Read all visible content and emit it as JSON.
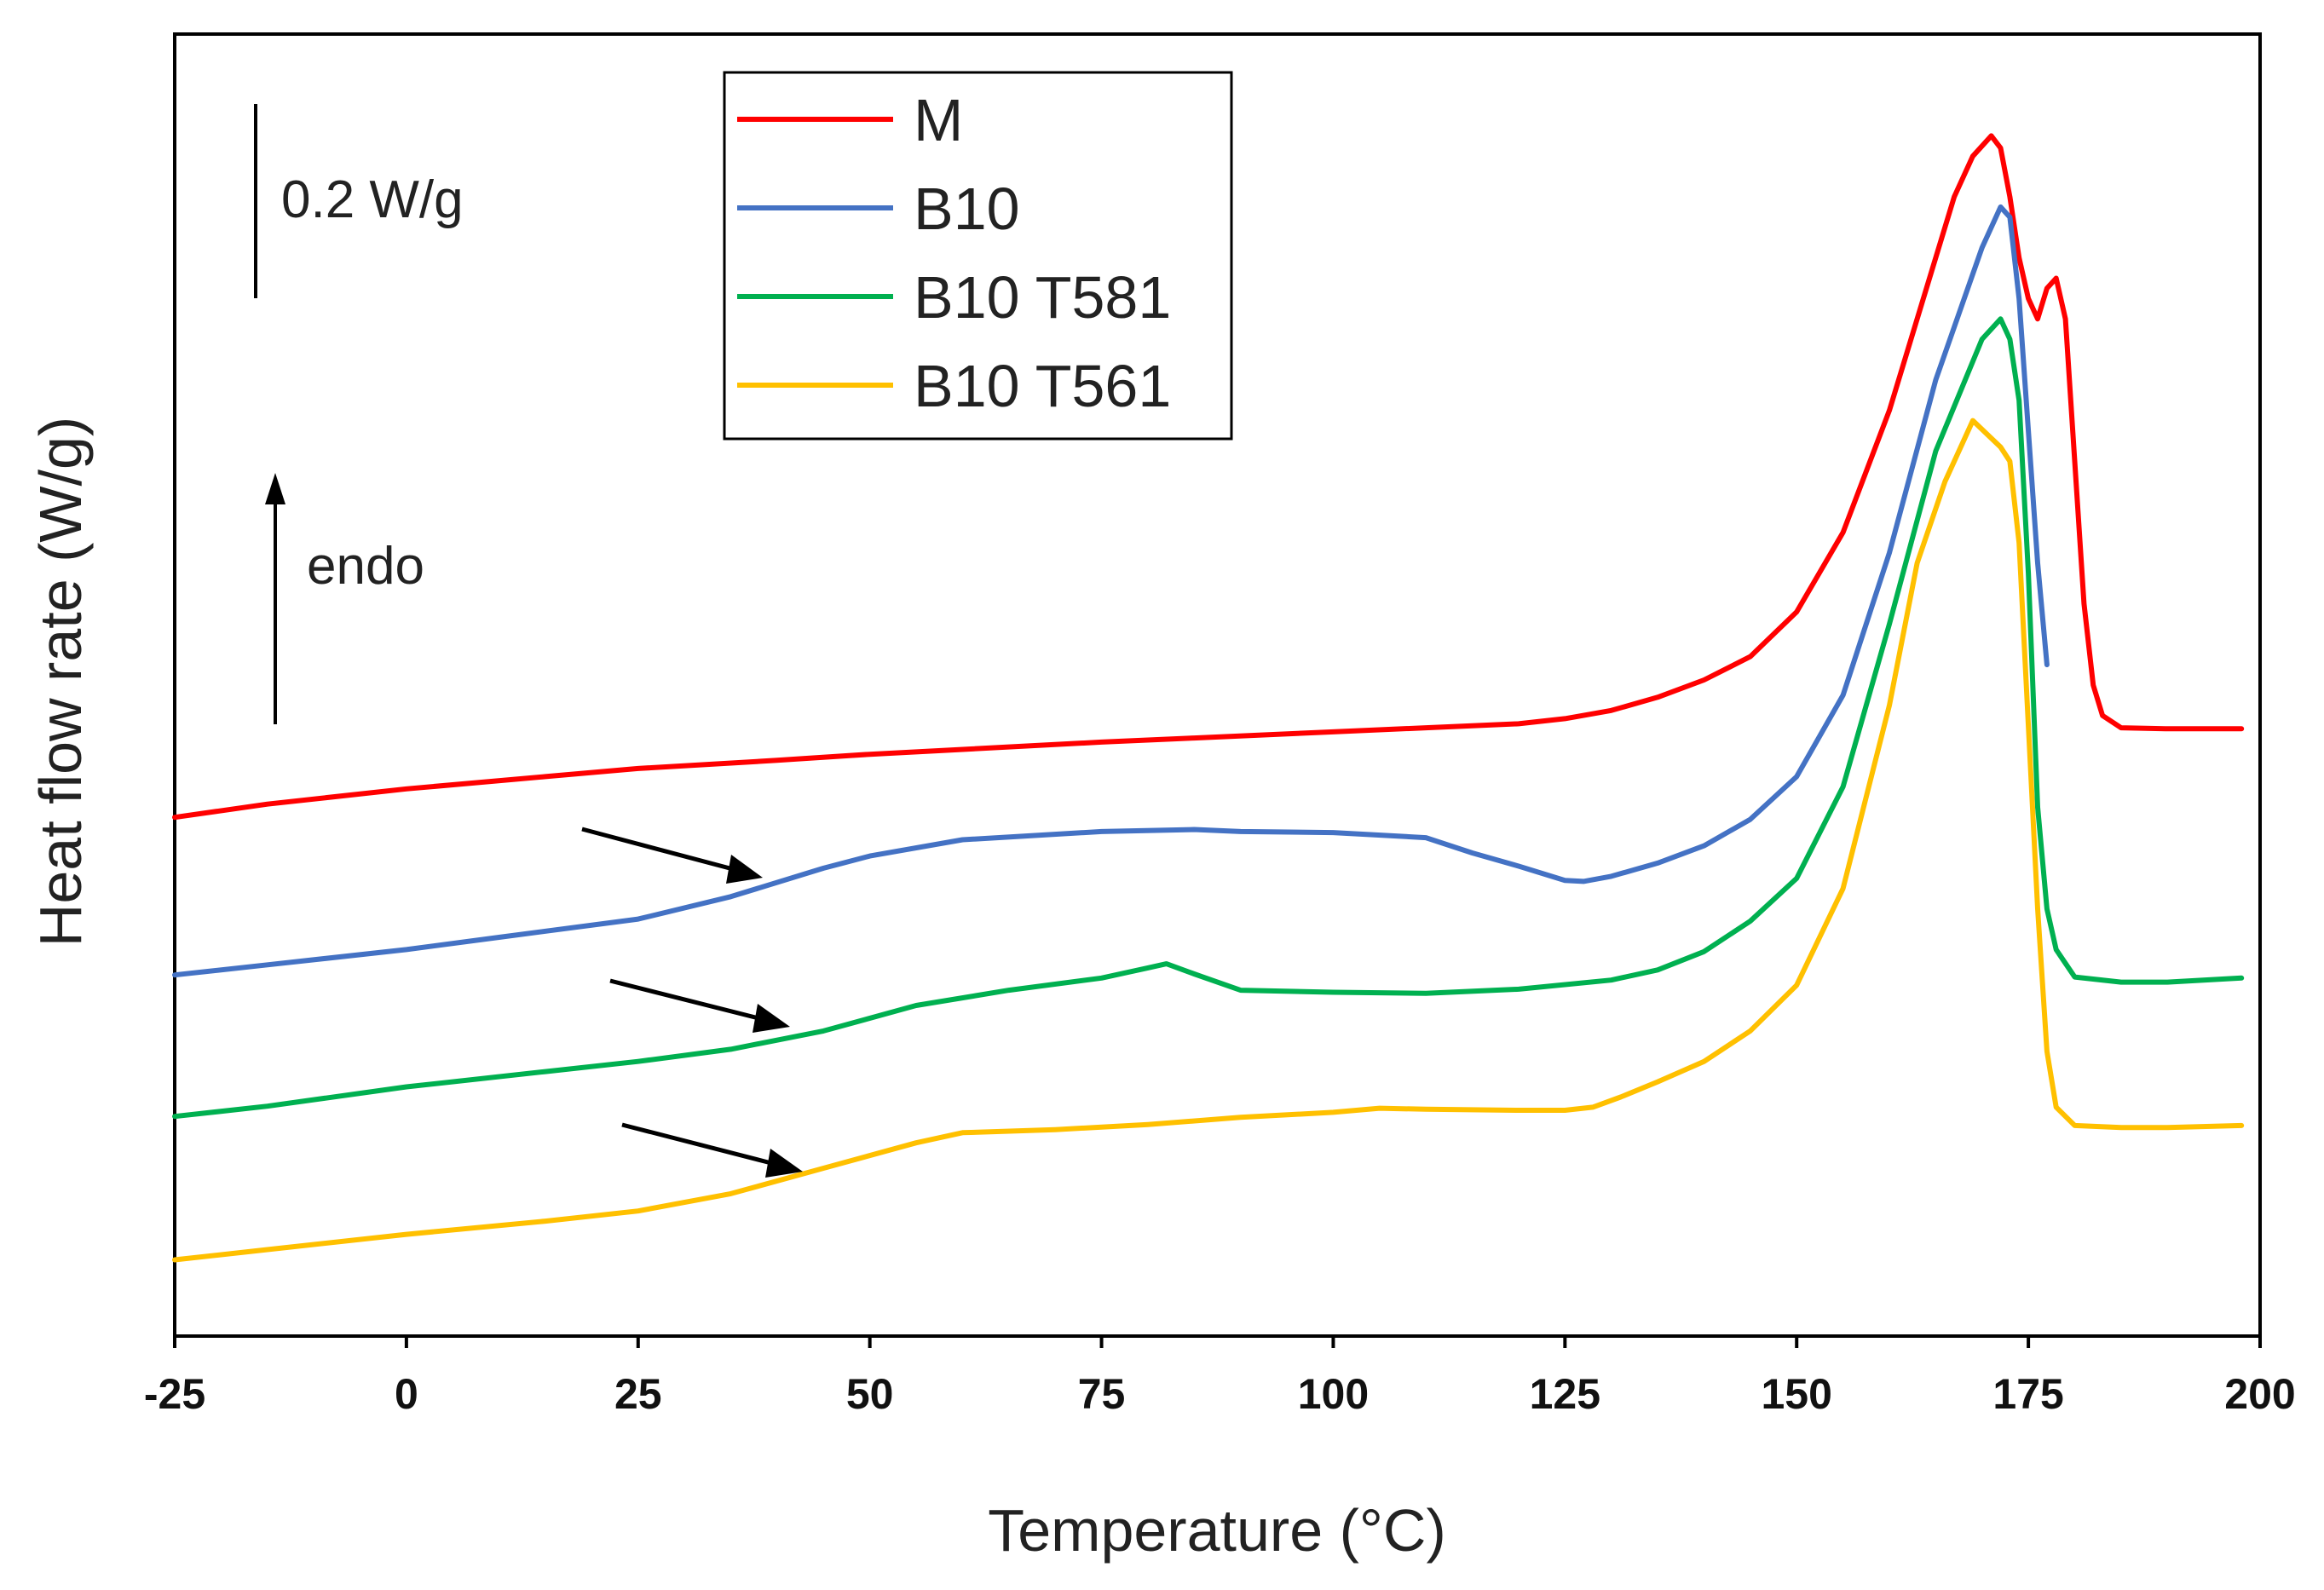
{
  "chart_data": {
    "type": "line",
    "title": "",
    "xlabel": "Temperature (°C)",
    "ylabel": "Heat flow rate (W/g)",
    "xlim": [
      -25,
      200
    ],
    "ylim": [
      0,
      1.28
    ],
    "xticks": [
      -25,
      0,
      25,
      50,
      75,
      100,
      125,
      150,
      175,
      200
    ],
    "grid": false,
    "legend_position": "top-center",
    "series": [
      {
        "name": "M",
        "color": "#ff0000",
        "points": [
          [
            -25,
            0.51
          ],
          [
            -15,
            0.523
          ],
          [
            0,
            0.538
          ],
          [
            15,
            0.55
          ],
          [
            25,
            0.558
          ],
          [
            40,
            0.566
          ],
          [
            50,
            0.572
          ],
          [
            75,
            0.584
          ],
          [
            85,
            0.588
          ],
          [
            100,
            0.594
          ],
          [
            110,
            0.598
          ],
          [
            120,
            0.602
          ],
          [
            125,
            0.607
          ],
          [
            130,
            0.615
          ],
          [
            135,
            0.628
          ],
          [
            140,
            0.645
          ],
          [
            145,
            0.668
          ],
          [
            150,
            0.712
          ],
          [
            155,
            0.79
          ],
          [
            160,
            0.91
          ],
          [
            164,
            1.03
          ],
          [
            167,
            1.12
          ],
          [
            169,
            1.16
          ],
          [
            171,
            1.18
          ],
          [
            172,
            1.168
          ],
          [
            173,
            1.12
          ],
          [
            174,
            1.06
          ],
          [
            175,
            1.02
          ],
          [
            176,
            1.0
          ],
          [
            177,
            1.03
          ],
          [
            178,
            1.04
          ],
          [
            179,
            1.0
          ],
          [
            180,
            0.86
          ],
          [
            181,
            0.72
          ],
          [
            182,
            0.64
          ],
          [
            183,
            0.61
          ],
          [
            185,
            0.598
          ],
          [
            190,
            0.597
          ],
          [
            198,
            0.597
          ]
        ]
      },
      {
        "name": "B10",
        "color": "#4472c4",
        "points": [
          [
            -25,
            0.355
          ],
          [
            -15,
            0.365
          ],
          [
            0,
            0.38
          ],
          [
            10,
            0.392
          ],
          [
            25,
            0.41
          ],
          [
            35,
            0.432
          ],
          [
            45,
            0.46
          ],
          [
            50,
            0.472
          ],
          [
            60,
            0.488
          ],
          [
            75,
            0.496
          ],
          [
            85,
            0.498
          ],
          [
            90,
            0.496
          ],
          [
            100,
            0.495
          ],
          [
            110,
            0.49
          ],
          [
            115,
            0.475
          ],
          [
            120,
            0.462
          ],
          [
            125,
            0.448
          ],
          [
            127,
            0.447
          ],
          [
            130,
            0.452
          ],
          [
            135,
            0.465
          ],
          [
            140,
            0.482
          ],
          [
            145,
            0.508
          ],
          [
            150,
            0.55
          ],
          [
            155,
            0.63
          ],
          [
            160,
            0.77
          ],
          [
            165,
            0.94
          ],
          [
            170,
            1.07
          ],
          [
            172,
            1.11
          ],
          [
            173,
            1.1
          ],
          [
            174,
            1.02
          ],
          [
            175,
            0.89
          ],
          [
            176,
            0.76
          ],
          [
            177,
            0.66
          ]
        ]
      },
      {
        "name": "B10 T581",
        "color": "#00b050",
        "points": [
          [
            -25,
            0.216
          ],
          [
            -15,
            0.226
          ],
          [
            0,
            0.245
          ],
          [
            15,
            0.26
          ],
          [
            25,
            0.27
          ],
          [
            35,
            0.282
          ],
          [
            45,
            0.3
          ],
          [
            55,
            0.325
          ],
          [
            65,
            0.34
          ],
          [
            75,
            0.352
          ],
          [
            80,
            0.362
          ],
          [
            82,
            0.366
          ],
          [
            85,
            0.356
          ],
          [
            90,
            0.34
          ],
          [
            100,
            0.338
          ],
          [
            110,
            0.337
          ],
          [
            120,
            0.341
          ],
          [
            130,
            0.35
          ],
          [
            135,
            0.36
          ],
          [
            140,
            0.378
          ],
          [
            145,
            0.408
          ],
          [
            150,
            0.45
          ],
          [
            155,
            0.54
          ],
          [
            160,
            0.7
          ],
          [
            165,
            0.87
          ],
          [
            170,
            0.98
          ],
          [
            172,
            1.0
          ],
          [
            173,
            0.98
          ],
          [
            174,
            0.92
          ],
          [
            175,
            0.75
          ],
          [
            176,
            0.52
          ],
          [
            177,
            0.42
          ],
          [
            178,
            0.38
          ],
          [
            180,
            0.353
          ],
          [
            185,
            0.348
          ],
          [
            190,
            0.348
          ],
          [
            198,
            0.352
          ]
        ]
      },
      {
        "name": "B10 T561",
        "color": "#ffc000",
        "points": [
          [
            -25,
            0.075
          ],
          [
            -15,
            0.085
          ],
          [
            0,
            0.1
          ],
          [
            15,
            0.113
          ],
          [
            25,
            0.123
          ],
          [
            35,
            0.14
          ],
          [
            45,
            0.165
          ],
          [
            55,
            0.19
          ],
          [
            60,
            0.2
          ],
          [
            70,
            0.203
          ],
          [
            80,
            0.208
          ],
          [
            90,
            0.215
          ],
          [
            100,
            0.22
          ],
          [
            105,
            0.224
          ],
          [
            110,
            0.223
          ],
          [
            120,
            0.222
          ],
          [
            125,
            0.222
          ],
          [
            128,
            0.225
          ],
          [
            131,
            0.235
          ],
          [
            135,
            0.25
          ],
          [
            140,
            0.27
          ],
          [
            145,
            0.3
          ],
          [
            150,
            0.345
          ],
          [
            155,
            0.44
          ],
          [
            160,
            0.62
          ],
          [
            163,
            0.76
          ],
          [
            166,
            0.84
          ],
          [
            169,
            0.9
          ],
          [
            172,
            0.874
          ],
          [
            173,
            0.86
          ],
          [
            174,
            0.78
          ],
          [
            175,
            0.6
          ],
          [
            176,
            0.42
          ],
          [
            177,
            0.28
          ],
          [
            178,
            0.225
          ],
          [
            180,
            0.207
          ],
          [
            185,
            0.205
          ],
          [
            190,
            0.205
          ],
          [
            198,
            0.207
          ]
        ]
      }
    ],
    "annotations": {
      "scale_bar_label": "0.2 W/g",
      "endo_label": "endo"
    }
  }
}
